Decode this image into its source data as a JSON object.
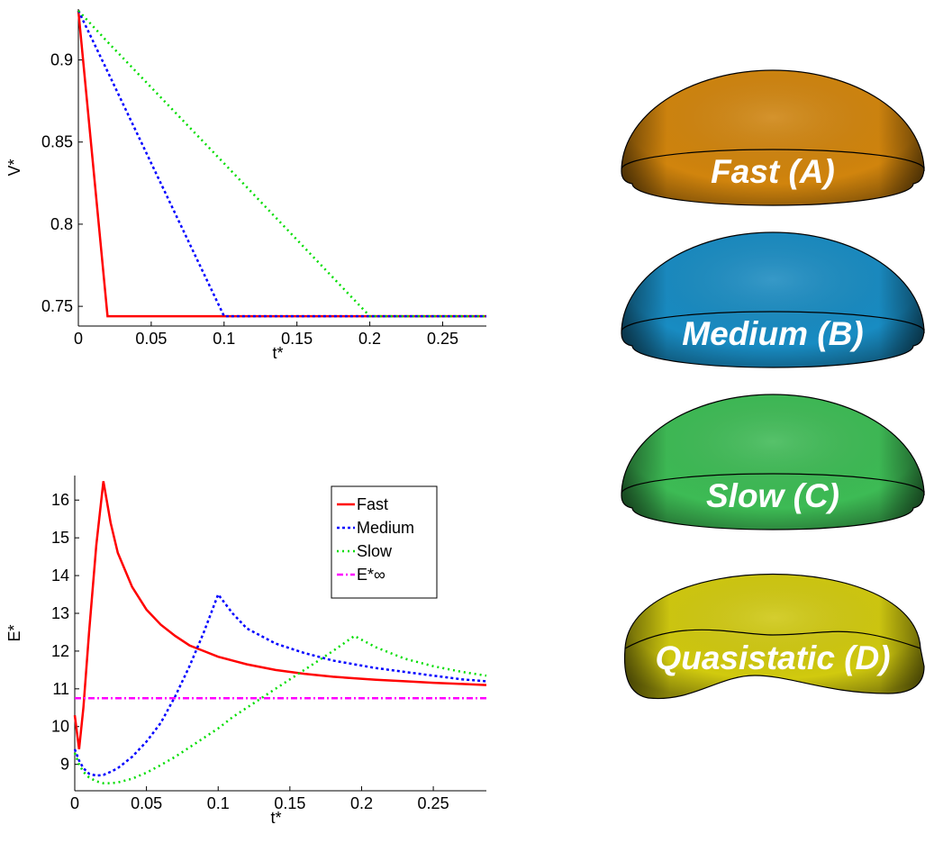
{
  "chart_data": [
    {
      "type": "line",
      "xlabel": "t*",
      "ylabel": "V*",
      "x": [
        0,
        0.02,
        0.1,
        0.2,
        0.28
      ],
      "xlim": [
        0,
        0.28
      ],
      "ylim": [
        0.738,
        0.931
      ],
      "xticks": [
        0,
        0.05,
        0.1,
        0.15,
        0.2,
        0.25
      ],
      "yticks": [
        0.75,
        0.8,
        0.85,
        0.9
      ],
      "series": [
        {
          "color": "#ff0000",
          "style": "solid",
          "values": [
            0.93,
            0.744,
            0.744,
            0.744,
            0.744
          ]
        },
        {
          "color": "#0000ff",
          "style": "dotted",
          "values": [
            0.93,
            0.893,
            0.744,
            0.744,
            0.744
          ]
        },
        {
          "color": "#00dd00",
          "style": "dots",
          "values": [
            0.93,
            0.911,
            0.837,
            0.744,
            0.744
          ]
        }
      ]
    },
    {
      "type": "line",
      "xlabel": "t*",
      "ylabel": "E*",
      "legend": "upper right",
      "x": [
        0,
        0.003,
        0.006,
        0.01,
        0.015,
        0.02,
        0.025,
        0.03,
        0.04,
        0.05,
        0.06,
        0.07,
        0.08,
        0.09,
        0.1,
        0.11,
        0.12,
        0.14,
        0.16,
        0.18,
        0.195,
        0.21,
        0.23,
        0.25,
        0.27,
        0.287
      ],
      "xlim": [
        0,
        0.287
      ],
      "ylim": [
        8.3,
        16.65
      ],
      "xticks": [
        0,
        0.05,
        0.1,
        0.15,
        0.2,
        0.25
      ],
      "yticks": [
        9,
        10,
        11,
        12,
        13,
        14,
        15,
        16
      ],
      "series": [
        {
          "name": "Fast",
          "color": "#ff0000",
          "style": "solid",
          "values": [
            10.3,
            9.4,
            10.5,
            12.5,
            14.8,
            16.5,
            15.4,
            14.6,
            13.7,
            13.1,
            12.7,
            12.4,
            12.15,
            12.0,
            11.85,
            11.75,
            11.65,
            11.5,
            11.4,
            11.32,
            11.28,
            11.24,
            11.2,
            11.16,
            11.13,
            11.1
          ]
        },
        {
          "name": "Medium",
          "color": "#0000ff",
          "style": "dotted",
          "values": [
            9.4,
            9.1,
            8.9,
            8.75,
            8.7,
            8.72,
            8.8,
            8.9,
            9.2,
            9.6,
            10.1,
            10.8,
            11.6,
            12.5,
            13.5,
            13.0,
            12.6,
            12.2,
            11.95,
            11.75,
            11.65,
            11.55,
            11.45,
            11.35,
            11.25,
            11.2
          ]
        },
        {
          "name": "Slow",
          "color": "#00dd00",
          "style": "dots",
          "values": [
            9.3,
            9.0,
            8.8,
            8.65,
            8.55,
            8.5,
            8.5,
            8.52,
            8.62,
            8.78,
            8.98,
            9.2,
            9.45,
            9.7,
            9.95,
            10.25,
            10.5,
            11.0,
            11.5,
            12.0,
            12.4,
            12.1,
            11.8,
            11.6,
            11.45,
            11.35
          ]
        },
        {
          "name": "E*∞",
          "color": "#ff00ff",
          "style": "dashdot",
          "values": [
            10.75,
            10.75,
            10.75,
            10.75,
            10.75,
            10.75,
            10.75,
            10.75,
            10.75,
            10.75,
            10.75,
            10.75,
            10.75,
            10.75,
            10.75,
            10.75,
            10.75,
            10.75,
            10.75,
            10.75,
            10.75,
            10.75,
            10.75,
            10.75,
            10.75,
            10.75
          ]
        }
      ]
    }
  ],
  "shapes": [
    {
      "label": "Fast (A)",
      "color": "#e8930e"
    },
    {
      "label": "Medium (B)",
      "color": "#1b9bd8"
    },
    {
      "label": "Slow (C)",
      "color": "#44d05e"
    },
    {
      "label": "Quasistatic (D)",
      "color": "#e8e010"
    }
  ]
}
